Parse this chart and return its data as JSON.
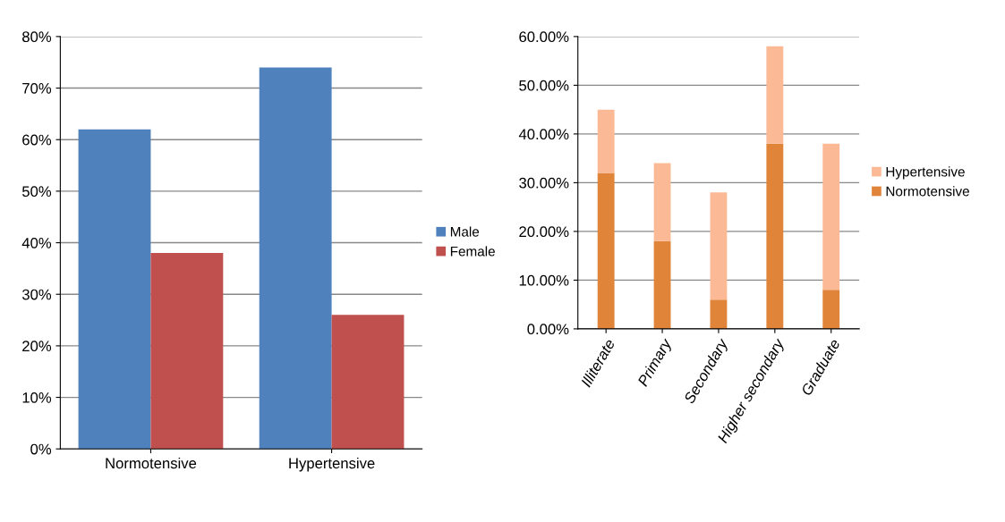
{
  "chart_data": [
    {
      "type": "bar",
      "categories": [
        "Normotensive",
        "Hypertensive"
      ],
      "ylim": [
        0,
        80
      ],
      "yticks": [
        {
          "value": 0,
          "label": "0%"
        },
        {
          "value": 10,
          "label": "10%"
        },
        {
          "value": 20,
          "label": "20%"
        },
        {
          "value": 30,
          "label": "30%"
        },
        {
          "value": 40,
          "label": "40%"
        },
        {
          "value": 50,
          "label": "50%"
        },
        {
          "value": 60,
          "label": "60%"
        },
        {
          "value": 70,
          "label": "70%"
        },
        {
          "value": 80,
          "label": "80%"
        }
      ],
      "grid": "y",
      "legend": "right",
      "series": [
        {
          "name": "Male",
          "color": "#4f81bd",
          "values": [
            62,
            74
          ]
        },
        {
          "name": "Female",
          "color": "#c0504d",
          "values": [
            38,
            26
          ]
        }
      ]
    },
    {
      "type": "bar",
      "stacked": true,
      "categories": [
        "Illiterate",
        "Primary",
        "Secondary",
        "Higher secondary",
        "Graduate"
      ],
      "ylim": [
        0,
        60
      ],
      "yticks": [
        {
          "value": 0,
          "label": "0.00%"
        },
        {
          "value": 10,
          "label": "10.00%"
        },
        {
          "value": 20,
          "label": "20.00%"
        },
        {
          "value": 30,
          "label": "30.00%"
        },
        {
          "value": 40,
          "label": "40.00%"
        },
        {
          "value": 50,
          "label": "50.00%"
        },
        {
          "value": 60,
          "label": "60.00%"
        }
      ],
      "grid": "y",
      "legend": "right",
      "series": [
        {
          "name": "Normotensive",
          "color": "#e0843a",
          "values": [
            32,
            18,
            6,
            38,
            8
          ]
        },
        {
          "name": "Hypertensive",
          "color": "#fbb995",
          "values": [
            13,
            16,
            22,
            20,
            30
          ]
        }
      ]
    }
  ]
}
